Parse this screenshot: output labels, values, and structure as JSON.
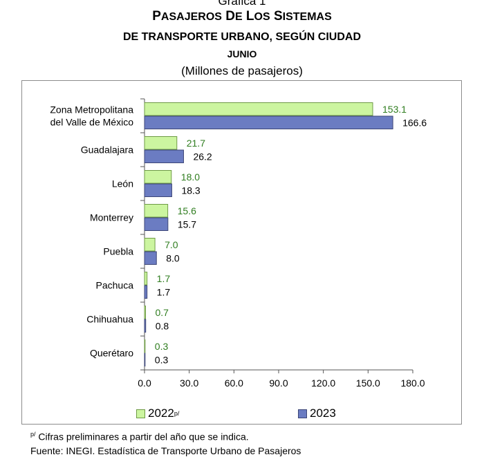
{
  "header": {
    "kicker": "Gráfica 1",
    "title_line1": "Pasajeros de los sistemas",
    "title_line2": "de transporte urbano, según ciudad",
    "month": "junio",
    "units": "(Millones de pasajeros)"
  },
  "colors": {
    "series_2022": "#ccf5a0",
    "series_2022_border": "#6e9a45",
    "series_2023": "#6b7cc2",
    "series_2023_border": "#3d4677",
    "label_2022": "#2f7d1f",
    "label_2023": "#000000"
  },
  "chart_data": {
    "type": "bar",
    "orientation": "horizontal",
    "title": "Pasajeros de los sistemas de transporte urbano, según ciudad",
    "subtitle": "junio (Millones de pasajeros)",
    "categories": [
      [
        "Zona Metropolitana",
        "del Valle de México"
      ],
      [
        "Guadalajara"
      ],
      [
        "León"
      ],
      [
        "Monterrey"
      ],
      [
        "Puebla"
      ],
      [
        "Pachuca"
      ],
      [
        "Chihuahua"
      ],
      [
        "Querétaro"
      ]
    ],
    "series": [
      {
        "name": "2022",
        "values": [
          153.1,
          21.7,
          18.0,
          15.6,
          7.0,
          1.7,
          0.7,
          0.3
        ]
      },
      {
        "name": "2023",
        "values": [
          166.6,
          26.2,
          18.3,
          15.7,
          8.0,
          1.7,
          0.8,
          0.3
        ]
      }
    ],
    "xlim": [
      0,
      180
    ],
    "xticks": [
      0,
      30,
      60,
      90,
      120,
      150,
      180
    ],
    "tick_decimals": 1,
    "value_decimals": 1,
    "grid": false,
    "legend_position": "bottom"
  },
  "legend": {
    "label_2022": "2022",
    "label_2022_mark": "p/",
    "label_2023": "2023"
  },
  "footnotes": {
    "note_mark": "p/",
    "note": " Cifras preliminares a partir del año que se indica.",
    "source": "Fuente: INEGI. Estadística de Transporte Urbano de Pasajeros"
  }
}
